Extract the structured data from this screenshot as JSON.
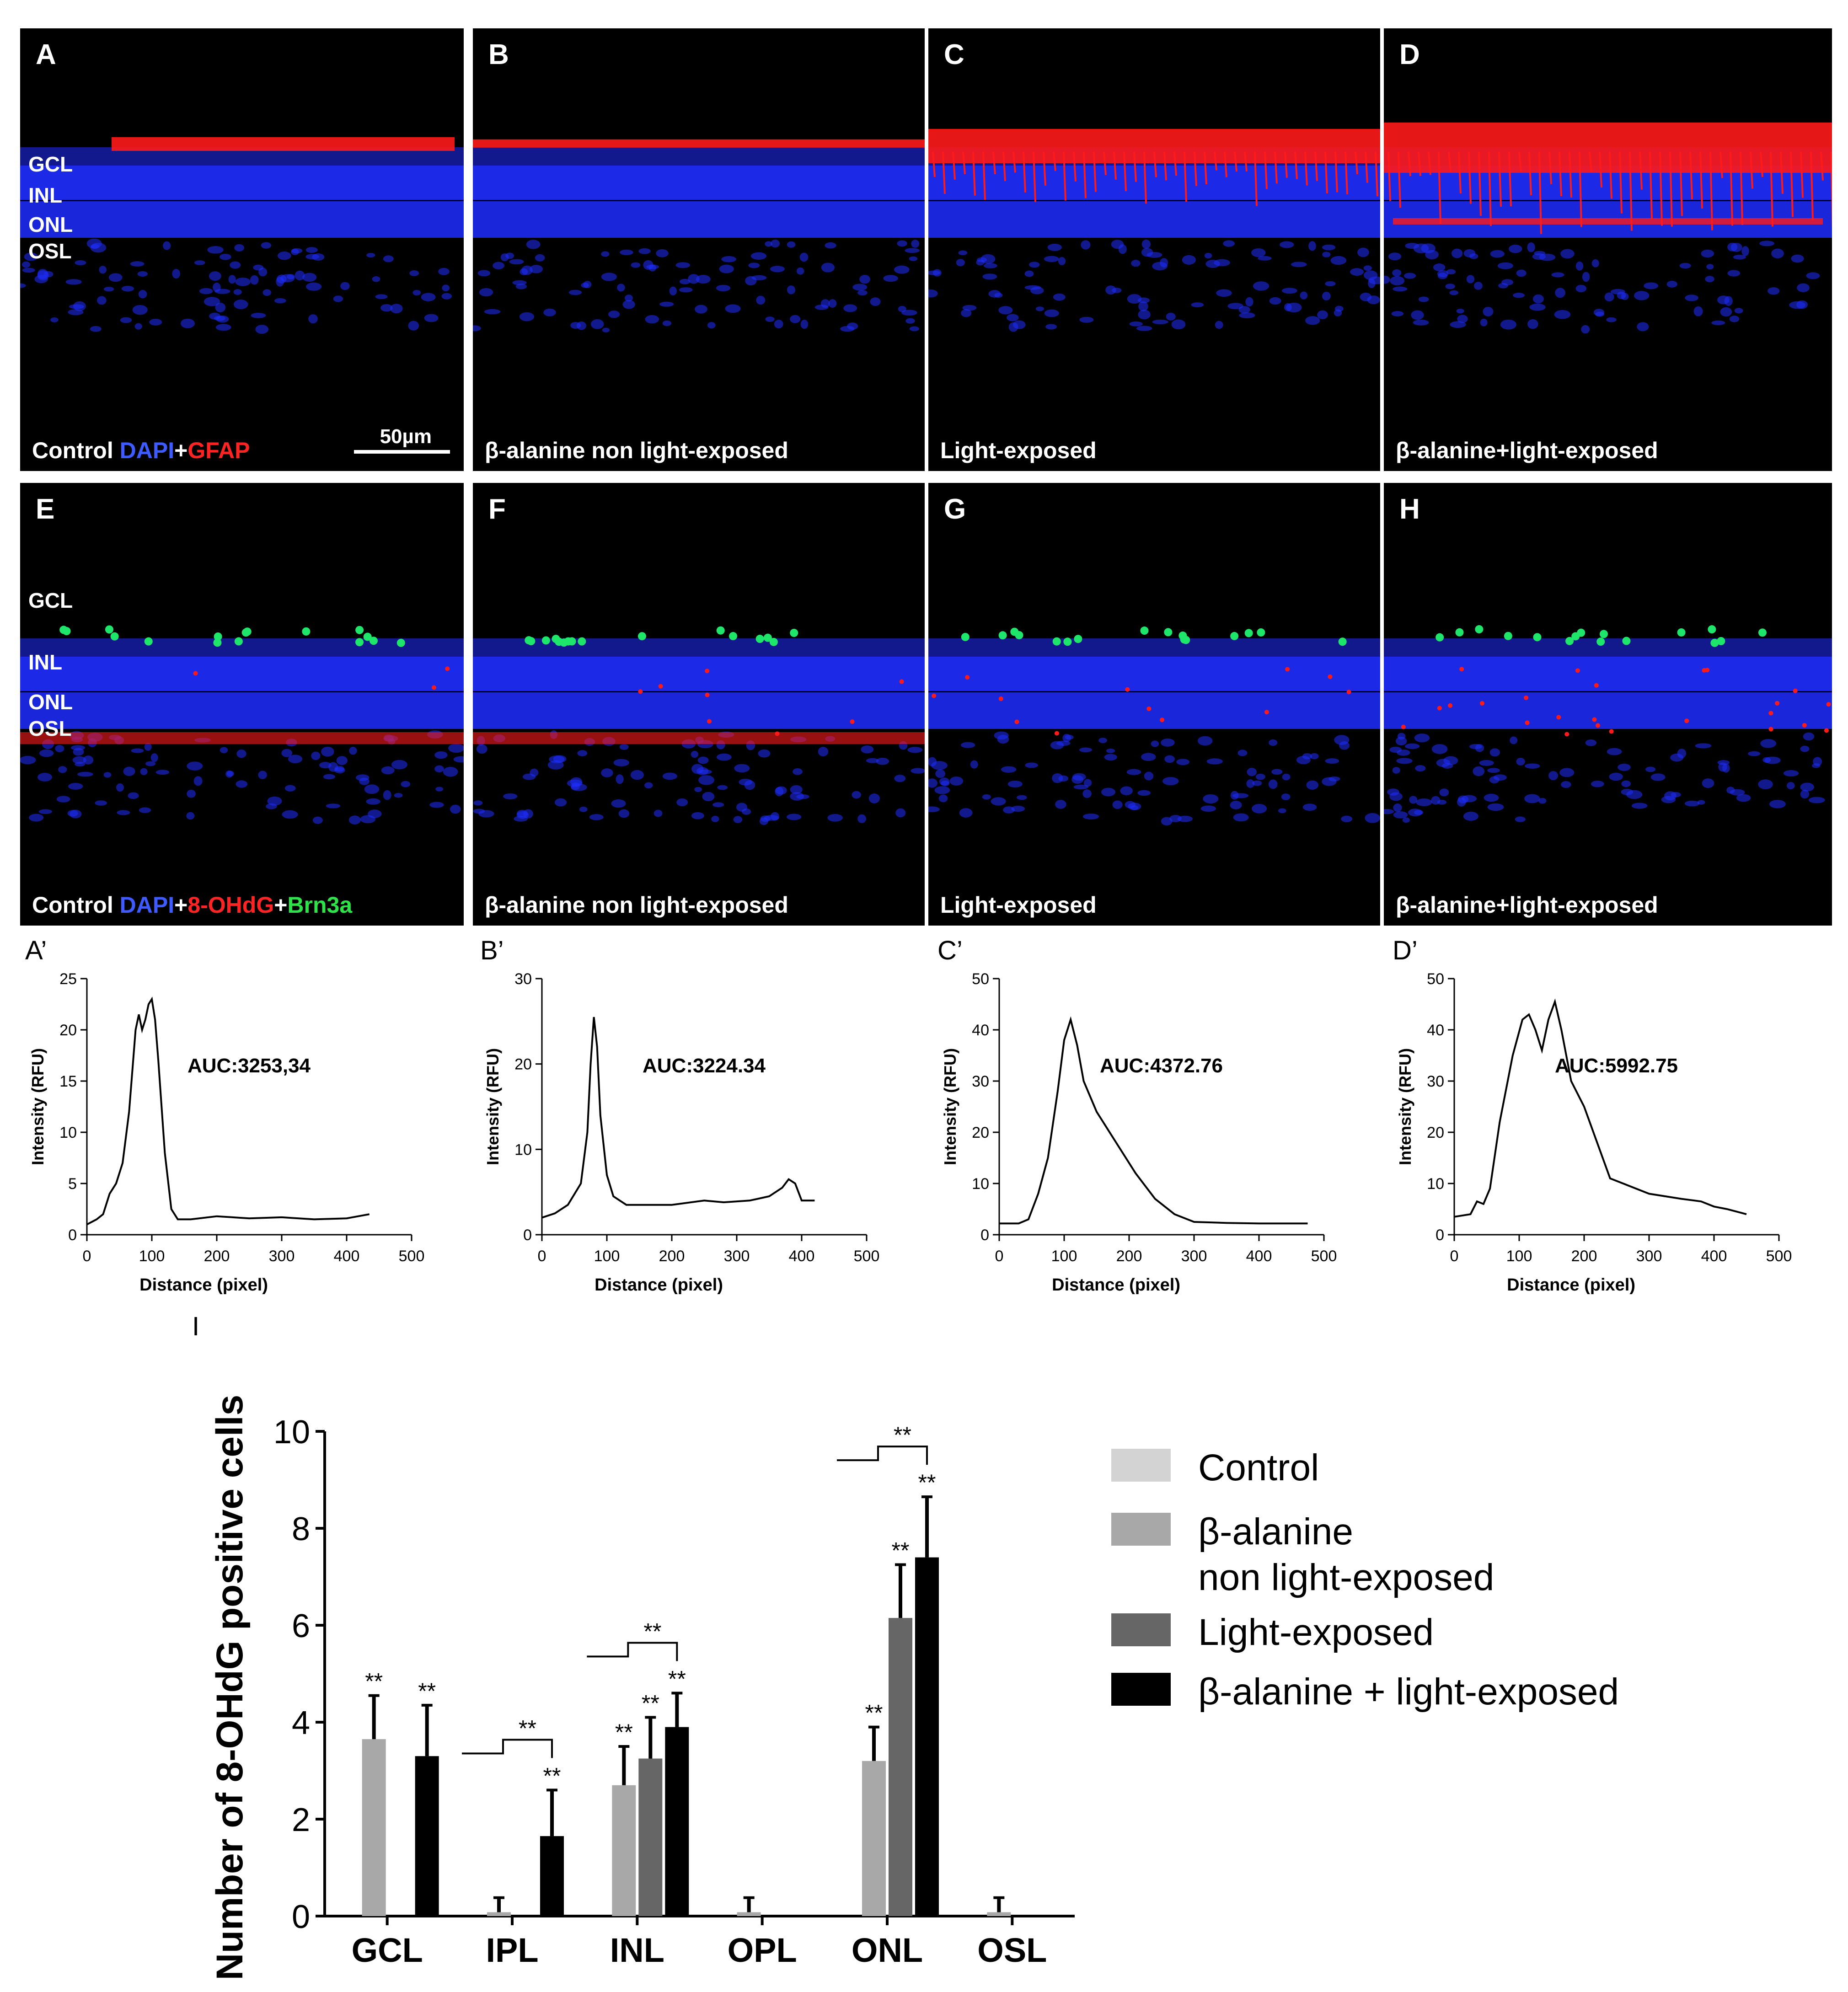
{
  "stain_rows": [
    {
      "stain_parts": [
        {
          "text": "DAPI",
          "cls": "blue"
        },
        {
          "text": "+",
          "cls": ""
        },
        {
          "text": "GFAP",
          "cls": "red"
        }
      ],
      "panels": [
        {
          "label": "A",
          "caption": "Control",
          "layers": [
            "GCL",
            "INL",
            "ONL",
            "OSL"
          ],
          "scale_bar": "50µm"
        },
        {
          "label": "B",
          "caption": "β-alanine non light-exposed"
        },
        {
          "label": "C",
          "caption": "Light-exposed"
        },
        {
          "label": "D",
          "caption": "β-alanine+light-exposed"
        }
      ]
    },
    {
      "stain_parts": [
        {
          "text": "DAPI",
          "cls": "blue"
        },
        {
          "text": "+",
          "cls": ""
        },
        {
          "text": "8-OHdG",
          "cls": "red"
        },
        {
          "text": "+",
          "cls": ""
        },
        {
          "text": "Brn3a",
          "cls": "green"
        }
      ],
      "panels": [
        {
          "label": "E",
          "caption": "Control",
          "layers": [
            "GCL",
            "INL",
            "ONL",
            "OSL"
          ]
        },
        {
          "label": "F",
          "caption": "β-alanine non light-exposed"
        },
        {
          "label": "G",
          "caption": "Light-exposed"
        },
        {
          "label": "H",
          "caption": "β-alanine+light-exposed"
        }
      ]
    }
  ],
  "colors": {
    "dapi": "#1f2dff",
    "gfap": "#ff1a1a",
    "brn3a": "#1ee66a",
    "control": "#d3d3d3",
    "beta_alanine": "#a8a8a8",
    "light_exposed": "#666666",
    "beta_light": "#000000"
  },
  "chart_data": [
    {
      "type": "line",
      "label": "A’",
      "annotation": "AUC:3253,34",
      "xlabel": "Distance (pixel)",
      "ylabel": "Intensity (RFU)",
      "xlim": [
        0,
        500
      ],
      "ylim": [
        0,
        25
      ],
      "xticks": [
        0,
        100,
        200,
        300,
        400,
        500
      ],
      "yticks": [
        0,
        5,
        10,
        15,
        20,
        25
      ],
      "x": [
        0,
        15,
        25,
        35,
        45,
        55,
        65,
        75,
        80,
        85,
        90,
        95,
        100,
        105,
        110,
        120,
        130,
        140,
        160,
        200,
        250,
        300,
        350,
        400,
        435
      ],
      "y": [
        1,
        1.5,
        2,
        4,
        5,
        7,
        12,
        20,
        21.5,
        20,
        21,
        22.5,
        23,
        21,
        17,
        8,
        2.5,
        1.5,
        1.5,
        1.8,
        1.6,
        1.7,
        1.5,
        1.6,
        2
      ]
    },
    {
      "type": "line",
      "label": "B’",
      "annotation": "AUC:3224.34",
      "xlabel": "Distance (pixel)",
      "ylabel": "Intensity (RFU)",
      "xlim": [
        0,
        500
      ],
      "ylim": [
        0,
        30
      ],
      "xticks": [
        0,
        100,
        200,
        300,
        400,
        500
      ],
      "yticks": [
        0,
        10,
        20,
        30
      ],
      "x": [
        0,
        20,
        40,
        60,
        70,
        75,
        80,
        85,
        90,
        100,
        110,
        130,
        160,
        200,
        250,
        280,
        320,
        350,
        370,
        380,
        390,
        400,
        420
      ],
      "y": [
        2,
        2.5,
        3.5,
        6,
        12,
        20,
        25.5,
        22,
        14,
        7,
        4.5,
        3.5,
        3.5,
        3.5,
        4,
        3.8,
        4,
        4.5,
        5.5,
        6.5,
        6,
        4,
        4
      ]
    },
    {
      "type": "line",
      "label": "C’",
      "annotation": "AUC:4372.76",
      "xlabel": "Distance (pixel)",
      "ylabel": "Intensity (RFU)",
      "xlim": [
        0,
        500
      ],
      "ylim": [
        0,
        50
      ],
      "xticks": [
        0,
        100,
        200,
        300,
        400,
        500
      ],
      "yticks": [
        0,
        10,
        20,
        30,
        40,
        50
      ],
      "x": [
        0,
        30,
        45,
        60,
        75,
        90,
        100,
        110,
        120,
        130,
        150,
        180,
        210,
        240,
        270,
        300,
        350,
        400,
        475
      ],
      "y": [
        2.2,
        2.2,
        3,
        8,
        15,
        28,
        38,
        42,
        37,
        30,
        24,
        18,
        12,
        7,
        4,
        2.5,
        2.3,
        2.2,
        2.2
      ]
    },
    {
      "type": "line",
      "label": "D’",
      "annotation": "AUC:5992.75",
      "xlabel": "Distance (pixel)",
      "ylabel": "Intensity (RFU)",
      "xlim": [
        0,
        500
      ],
      "ylim": [
        0,
        50
      ],
      "xticks": [
        0,
        100,
        200,
        300,
        400,
        500
      ],
      "yticks": [
        0,
        10,
        20,
        30,
        40,
        50
      ],
      "x": [
        0,
        25,
        35,
        45,
        55,
        70,
        90,
        105,
        115,
        125,
        135,
        145,
        155,
        165,
        180,
        200,
        220,
        240,
        270,
        300,
        350,
        380,
        400,
        420,
        450
      ],
      "y": [
        3.5,
        4,
        6.5,
        6,
        9,
        22,
        35,
        42,
        43,
        40,
        36,
        42,
        45.5,
        40,
        30,
        25,
        18,
        11,
        9.5,
        8,
        7,
        6.5,
        5.5,
        5,
        4
      ]
    },
    {
      "type": "bar",
      "label": "I",
      "ylabel": "Number of 8-OHdG positive cells",
      "ylim": [
        0,
        10
      ],
      "yticks": [
        0,
        2,
        4,
        6,
        8,
        10
      ],
      "categories": [
        "GCL",
        "IPL",
        "INL",
        "OPL",
        "ONL",
        "OSL"
      ],
      "series": [
        {
          "name": "Control",
          "values": [
            0,
            0,
            0,
            0,
            0,
            0
          ],
          "errors": [
            0,
            0,
            0,
            0,
            0,
            0
          ],
          "sig": [
            "",
            "",
            "",
            "",
            "",
            ""
          ]
        },
        {
          "name": "β-alanine non light-exposed",
          "values": [
            3.65,
            0.08,
            2.7,
            0.08,
            3.2,
            0.08
          ],
          "errors": [
            0.9,
            0.3,
            0.8,
            0.3,
            0.7,
            0.3
          ],
          "sig": [
            "**",
            "",
            "**",
            "",
            "**",
            ""
          ]
        },
        {
          "name": "Light-exposed",
          "values": [
            0,
            0,
            3.25,
            0,
            6.15,
            0
          ],
          "errors": [
            0,
            0,
            0.85,
            0,
            1.1,
            0
          ],
          "sig": [
            "",
            "",
            "**",
            "",
            "**",
            ""
          ]
        },
        {
          "name": "β-alanine + light-exposed",
          "values": [
            3.3,
            1.65,
            3.9,
            0,
            7.4,
            0
          ],
          "errors": [
            1.05,
            0.95,
            0.7,
            0,
            1.25,
            0
          ],
          "sig": [
            "**",
            "**",
            "**",
            "",
            "**",
            ""
          ]
        }
      ],
      "brackets": [
        {
          "category": "IPL",
          "label": "**"
        },
        {
          "category": "INL",
          "label": "**"
        },
        {
          "category": "ONL",
          "label": "**"
        }
      ],
      "legend": [
        {
          "lines": [
            "Control"
          ]
        },
        {
          "lines": [
            "β-alanine",
            "non light-exposed"
          ]
        },
        {
          "lines": [
            "Light-exposed"
          ]
        },
        {
          "lines": [
            "β-alanine + light-exposed"
          ]
        }
      ]
    }
  ]
}
